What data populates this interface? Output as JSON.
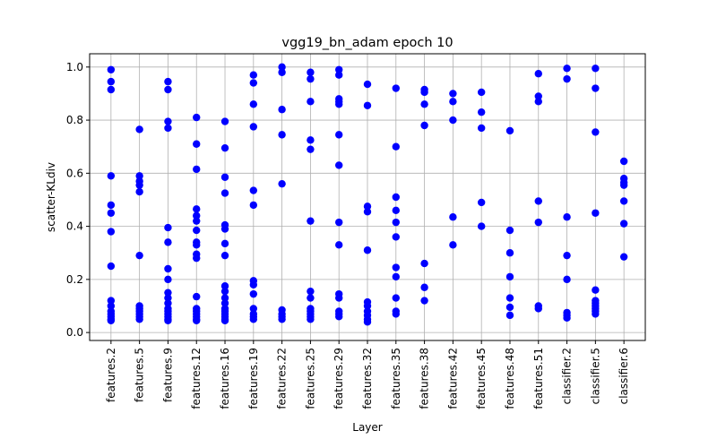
{
  "chart_data": {
    "type": "scatter",
    "title": "vgg19_bn_adam epoch 10",
    "xlabel": "Layer",
    "ylabel": "scatter-KLdiv",
    "ylim": [
      -0.03,
      1.05
    ],
    "yticks": [
      0.0,
      0.2,
      0.4,
      0.6,
      0.8,
      1.0
    ],
    "ytick_labels": [
      "0.0",
      "0.2",
      "0.4",
      "0.6",
      "0.8",
      "1.0"
    ],
    "grid": true,
    "marker_color": "#0000ff",
    "categories": [
      "features.2",
      "features.5",
      "features.9",
      "features.12",
      "features.16",
      "features.19",
      "features.22",
      "features.25",
      "features.29",
      "features.32",
      "features.35",
      "features.38",
      "features.42",
      "features.45",
      "features.48",
      "features.51",
      "classifier.2",
      "classifier.5",
      "classifier.6"
    ],
    "points": [
      [
        0.99,
        0.945,
        0.915,
        0.59,
        0.48,
        0.45,
        0.38,
        0.25,
        0.12,
        0.1,
        0.08,
        0.07,
        0.06,
        0.05,
        0.045
      ],
      [
        0.765,
        0.59,
        0.57,
        0.555,
        0.53,
        0.29,
        0.1,
        0.09,
        0.08,
        0.07,
        0.06,
        0.05
      ],
      [
        0.945,
        0.915,
        0.795,
        0.77,
        0.395,
        0.34,
        0.24,
        0.2,
        0.15,
        0.13,
        0.11,
        0.09,
        0.08,
        0.07,
        0.06,
        0.05,
        0.045
      ],
      [
        0.81,
        0.71,
        0.615,
        0.465,
        0.44,
        0.42,
        0.385,
        0.34,
        0.33,
        0.295,
        0.28,
        0.135,
        0.09,
        0.08,
        0.07,
        0.06,
        0.05,
        0.045
      ],
      [
        0.795,
        0.695,
        0.585,
        0.525,
        0.405,
        0.39,
        0.335,
        0.29,
        0.175,
        0.155,
        0.13,
        0.11,
        0.09,
        0.08,
        0.07,
        0.06,
        0.05,
        0.045
      ],
      [
        0.97,
        0.94,
        0.86,
        0.775,
        0.535,
        0.48,
        0.195,
        0.18,
        0.145,
        0.09,
        0.07,
        0.06,
        0.05
      ],
      [
        1.0,
        0.98,
        0.84,
        0.745,
        0.56,
        0.085,
        0.07,
        0.06,
        0.05
      ],
      [
        0.98,
        0.955,
        0.87,
        0.725,
        0.69,
        0.42,
        0.155,
        0.13,
        0.09,
        0.08,
        0.07,
        0.06,
        0.05
      ],
      [
        0.99,
        0.97,
        0.88,
        0.87,
        0.86,
        0.745,
        0.63,
        0.415,
        0.33,
        0.145,
        0.13,
        0.08,
        0.07,
        0.06
      ],
      [
        0.935,
        0.855,
        0.475,
        0.455,
        0.31,
        0.115,
        0.1,
        0.08,
        0.065,
        0.05,
        0.04
      ],
      [
        0.92,
        0.7,
        0.51,
        0.46,
        0.415,
        0.36,
        0.245,
        0.21,
        0.13,
        0.08,
        0.07
      ],
      [
        0.915,
        0.905,
        0.86,
        0.78,
        0.26,
        0.17,
        0.12
      ],
      [
        0.9,
        0.87,
        0.8,
        0.435,
        0.33
      ],
      [
        0.905,
        0.83,
        0.77,
        0.49,
        0.4
      ],
      [
        0.76,
        0.385,
        0.3,
        0.21,
        0.13,
        0.095,
        0.065
      ],
      [
        0.975,
        0.89,
        0.87,
        0.495,
        0.415,
        0.1,
        0.09
      ],
      [
        0.995,
        0.955,
        0.435,
        0.29,
        0.2,
        0.075,
        0.065,
        0.055
      ],
      [
        0.995,
        0.92,
        0.755,
        0.45,
        0.16,
        0.12,
        0.11,
        0.1,
        0.09,
        0.08,
        0.07
      ],
      [
        0.645,
        0.58,
        0.565,
        0.555,
        0.495,
        0.41,
        0.285
      ]
    ]
  }
}
